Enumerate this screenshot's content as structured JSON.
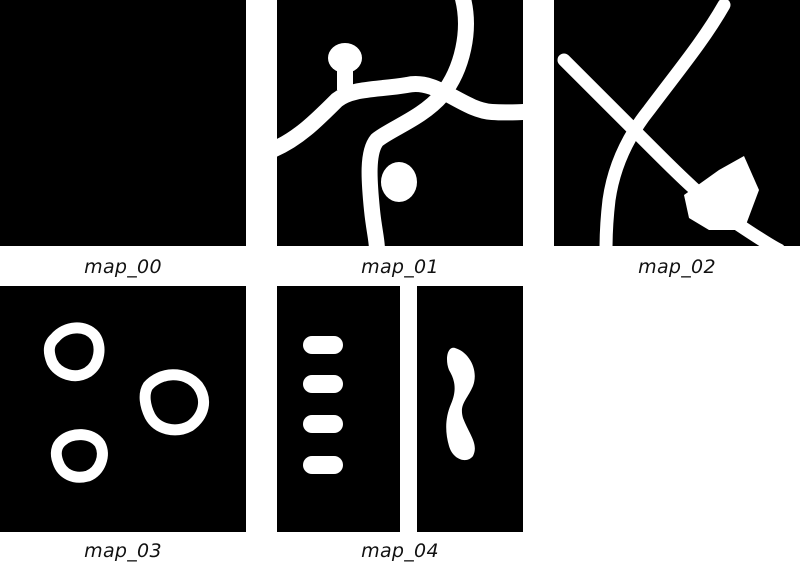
{
  "maps": [
    {
      "label": "map_00"
    },
    {
      "label": "map_01"
    },
    {
      "label": "map_02"
    },
    {
      "label": "map_03"
    },
    {
      "label": "map_04"
    }
  ]
}
